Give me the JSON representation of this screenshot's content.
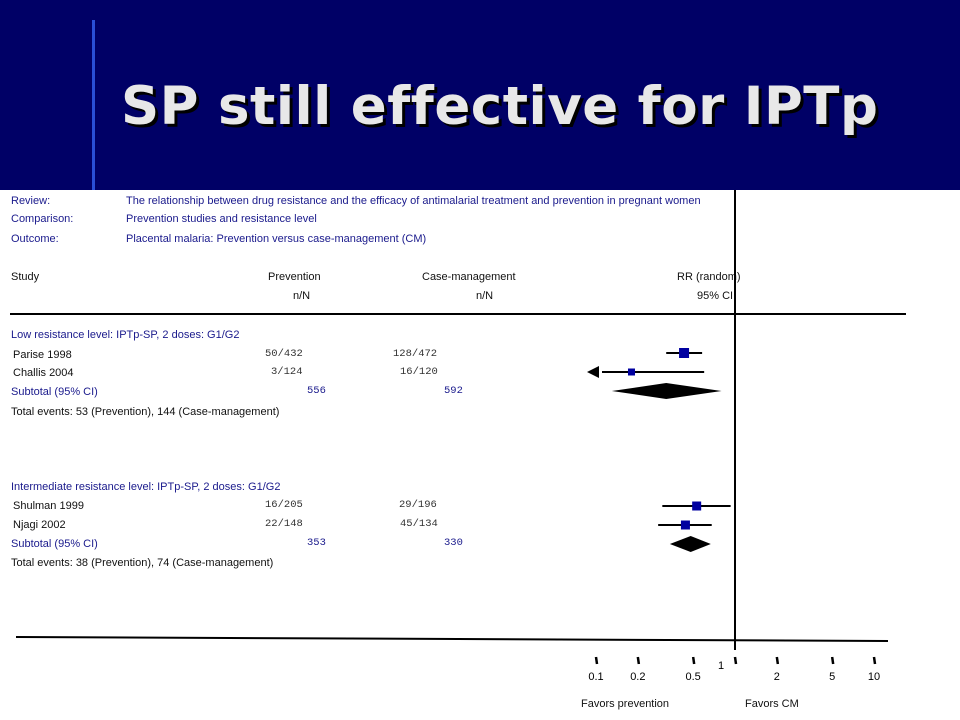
{
  "title": "SP still effective for IPTp",
  "meta": {
    "review_label": "Review:",
    "review_text": "The relationship between drug resistance and the efficacy of antimalarial treatment and prevention in pregnant women",
    "comparison_label": "Comparison:",
    "comparison_text": "Prevention studies and resistance level",
    "outcome_label": "Outcome:",
    "outcome_text": "Placental malaria: Prevention versus case-management (CM)"
  },
  "columns": {
    "study": "Study",
    "prevention": "Prevention",
    "prevention_sub": "n/N",
    "cm": "Case-management",
    "cm_sub": "n/N",
    "rr": "RR (random)",
    "rr_sub": "95% CI"
  },
  "groups": [
    {
      "header": "Low resistance level: IPTp-SP, 2 doses: G1/G2",
      "studies": [
        {
          "name": "Parise 1998",
          "prevention": "50/432",
          "cm": "128/472"
        },
        {
          "name": "Challis 2004",
          "prevention": "3/124",
          "cm": "16/120"
        }
      ],
      "subtotal_label": "Subtotal (95% CI)",
      "subtotal_prevention": "556",
      "subtotal_cm": "592",
      "total_events": "Total events: 53 (Prevention), 144 (Case-management)"
    },
    {
      "header": "Intermediate resistance level: IPTp-SP, 2 doses: G1/G2",
      "studies": [
        {
          "name": "Shulman 1999",
          "prevention": "16/205",
          "cm": "29/196"
        },
        {
          "name": "Njagi 2002",
          "prevention": "22/148",
          "cm": "45/134"
        }
      ],
      "subtotal_label": "Subtotal (95% CI)",
      "subtotal_prevention": "353",
      "subtotal_cm": "330",
      "total_events": "Total events: 38 (Prevention), 74 (Case-management)"
    }
  ],
  "axis": {
    "favors_left": "Favors prevention",
    "favors_right": "Favors CM"
  },
  "chart_data": {
    "type": "forest",
    "x_scale": "log",
    "xlim": [
      0.1,
      10
    ],
    "null_line": 1,
    "ticks": [
      "0.1",
      "0.2",
      "0.5",
      "1",
      "2",
      "5",
      "10"
    ],
    "tick_values": [
      0.1,
      0.2,
      0.5,
      1,
      2,
      5,
      10
    ],
    "groups": [
      {
        "name": "Low resistance level: IPTp-SP, 2 doses: G1/G2",
        "studies": [
          {
            "study": "Parise 1998",
            "rr": 0.43,
            "ci_low": 0.32,
            "ci_high": 0.58
          },
          {
            "study": "Challis 2004",
            "rr": 0.18,
            "ci_low": 0.1,
            "ci_high": 0.6,
            "arrow_left": true
          }
        ],
        "subtotal": {
          "rr": 0.32,
          "ci_low": 0.13,
          "ci_high": 0.8
        }
      },
      {
        "name": "Intermediate resistance level: IPTp-SP, 2 doses: G1/G2",
        "studies": [
          {
            "study": "Shulman 1999",
            "rr": 0.53,
            "ci_low": 0.3,
            "ci_high": 0.93
          },
          {
            "study": "Njagi 2002",
            "rr": 0.44,
            "ci_low": 0.28,
            "ci_high": 0.68
          }
        ],
        "subtotal": {
          "rr": 0.48,
          "ci_low": 0.34,
          "ci_high": 0.67
        }
      }
    ]
  }
}
